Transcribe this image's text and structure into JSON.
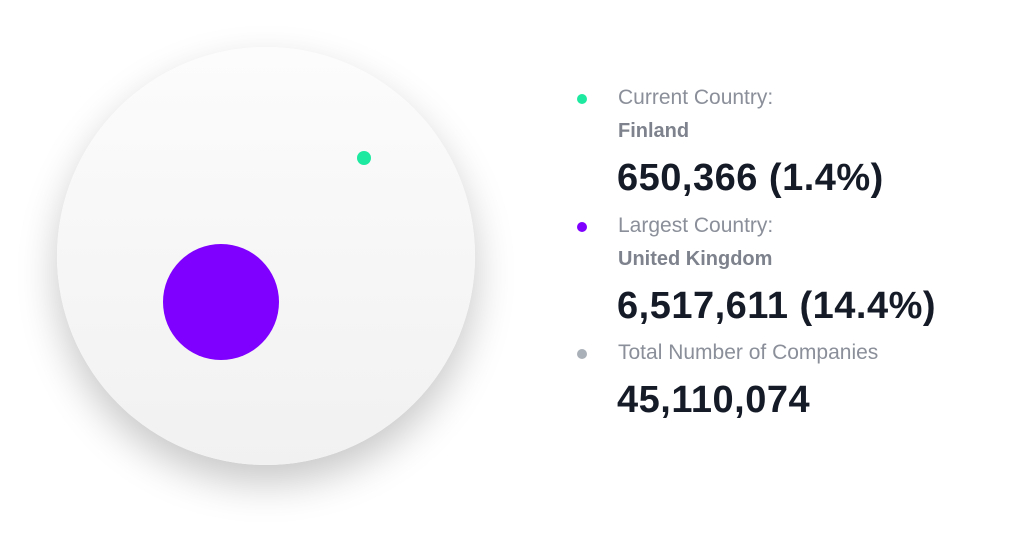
{
  "items": [
    {
      "label": "Current Country:",
      "name": "Finland",
      "value": "650,366 (1.4%)"
    },
    {
      "label": "Largest Country:",
      "name": "United Kingdom",
      "value": "6,517,611 (14.4%)"
    },
    {
      "label": "Total Number of Companies",
      "value": "45,110,074"
    }
  ]
}
